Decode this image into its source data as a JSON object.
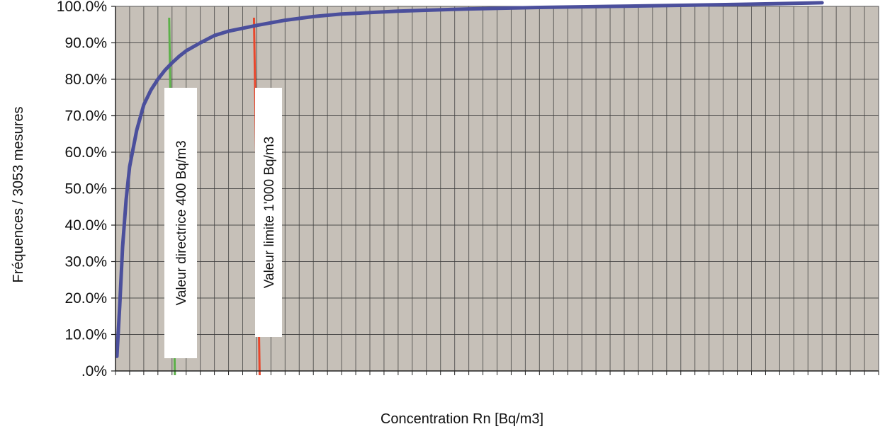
{
  "chart_data": {
    "type": "line",
    "title": "",
    "xlabel": "Concentration Rn [Bq/m3]",
    "ylabel": "Fréquences / 3053 mesures",
    "y_ticks": [
      ".0%",
      "10.0%",
      "20.0%",
      "30.0%",
      "40.0%",
      "50.0%",
      "60.0%",
      "70.0%",
      "80.0%",
      "90.0%",
      "100.0%"
    ],
    "ylim": [
      0,
      100
    ],
    "xlim": [
      0,
      5400
    ],
    "grid": true,
    "colors": {
      "plot_background": "#c6c0b8",
      "grid": "#3b3b3b",
      "series": "#4b4f9c",
      "directive_line": "#5db04a",
      "limit_line": "#e8472c"
    },
    "series": [
      {
        "name": "",
        "x": [
          10,
          30,
          50,
          75,
          100,
          150,
          200,
          250,
          300,
          350,
          400,
          450,
          500,
          600,
          700,
          800,
          900,
          1000,
          1200,
          1400,
          1600,
          1800,
          2000,
          2500,
          3000,
          3500,
          4000,
          4500,
          5000
        ],
        "y": [
          4,
          18,
          34,
          47,
          56,
          66,
          73,
          77,
          80,
          82.5,
          84.5,
          86.3,
          87.8,
          90,
          92,
          93.2,
          94,
          94.8,
          96.2,
          97.2,
          97.9,
          98.3,
          98.7,
          99.3,
          99.7,
          100,
          100.3,
          100.6,
          101
        ]
      }
    ],
    "reference_lines": [
      {
        "key": "directive",
        "x": 400,
        "label": "Valeur directrice 400 Bq/m3"
      },
      {
        "key": "limit",
        "x": 1000,
        "label": "Valeur limite 1'000 Bq/m3"
      }
    ]
  }
}
